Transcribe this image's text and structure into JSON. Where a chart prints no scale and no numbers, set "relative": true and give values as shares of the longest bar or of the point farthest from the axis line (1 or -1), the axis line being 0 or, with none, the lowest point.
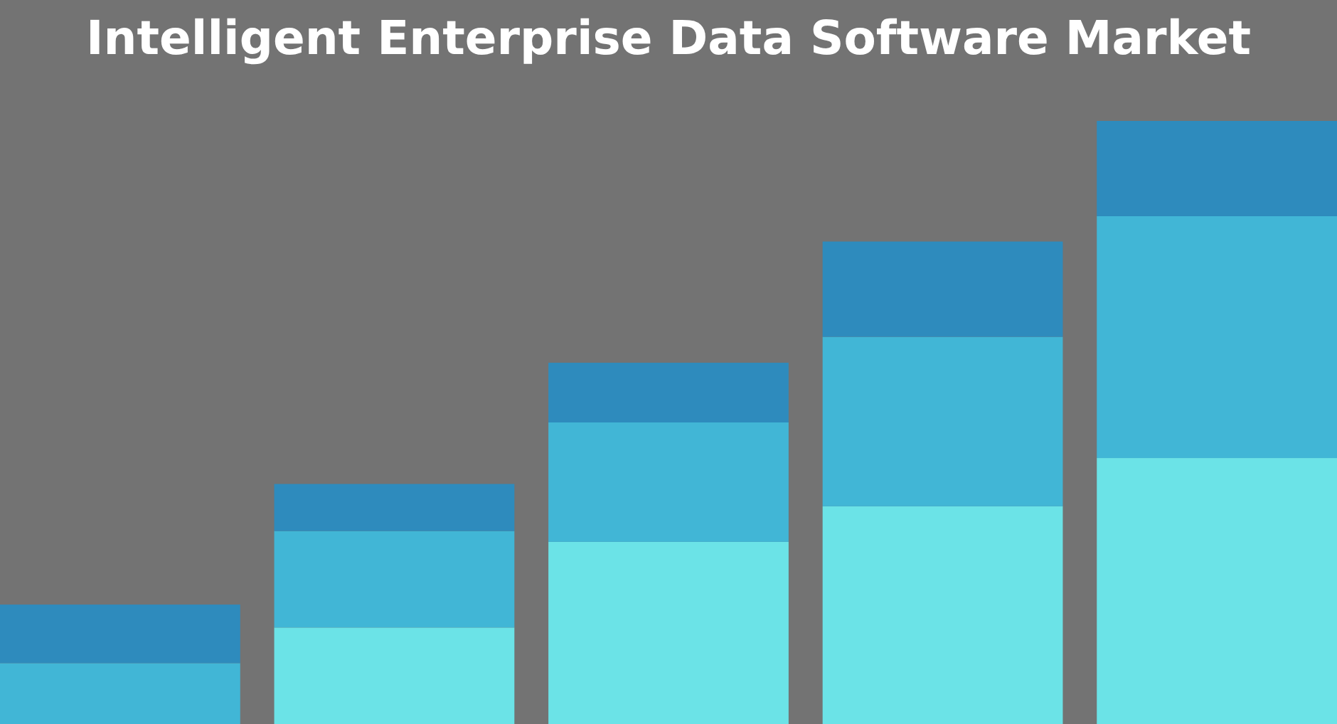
{
  "chart_data": {
    "type": "bar",
    "title": "Intelligent Enterprise Data Software Market",
    "relative": true,
    "stacked": true,
    "categories": [
      null,
      null,
      null,
      null,
      null
    ],
    "series": [
      {
        "color": "#6be3e7",
        "values": [
          0,
          0.16,
          0.302,
          0.361,
          0.441
        ]
      },
      {
        "color": "#41b6d6",
        "values": [
          0.101,
          0.16,
          0.198,
          0.281,
          0.401
        ]
      },
      {
        "color": "#2e8bbd",
        "values": [
          0.097,
          0.078,
          0.099,
          0.158,
          0.158
        ]
      }
    ]
  }
}
